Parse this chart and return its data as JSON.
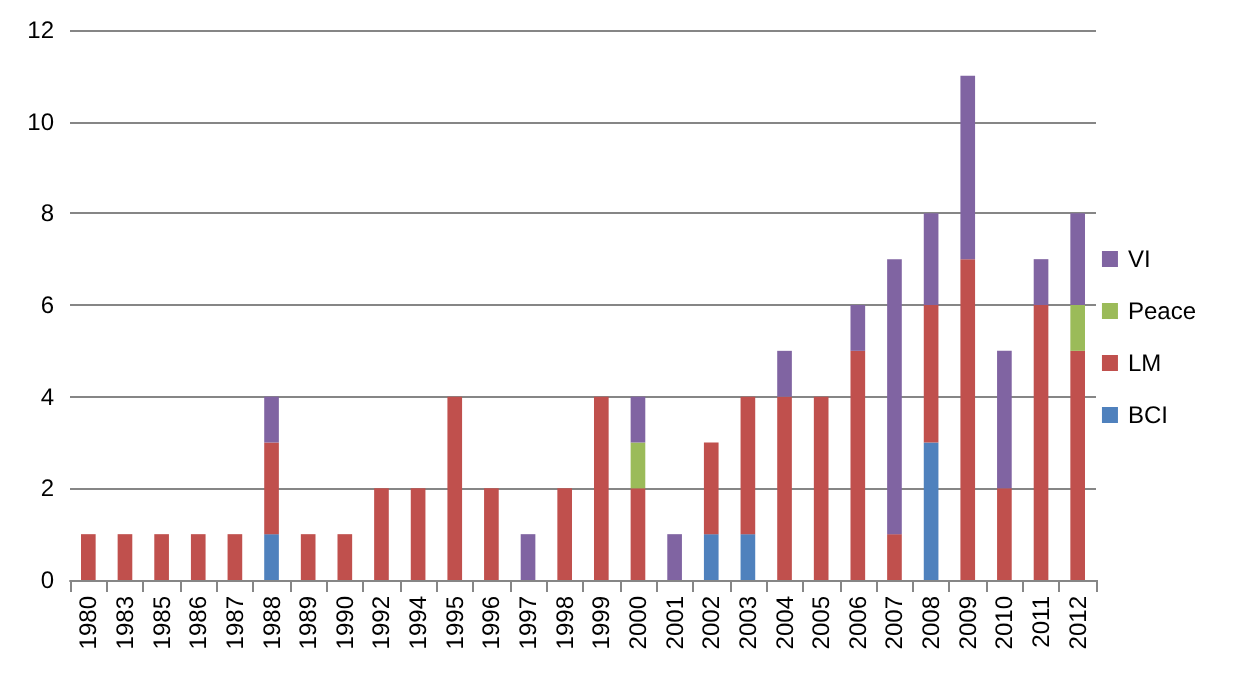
{
  "chart_data": {
    "type": "bar",
    "stacked": true,
    "categories": [
      "1980",
      "1983",
      "1985",
      "1986",
      "1987",
      "1988",
      "1989",
      "1990",
      "1992",
      "1994",
      "1995",
      "1996",
      "1997",
      "1998",
      "1999",
      "2000",
      "2001",
      "2002",
      "2003",
      "2004",
      "2005",
      "2006",
      "2007",
      "2008",
      "2009",
      "2010",
      "2011",
      "2012"
    ],
    "series": [
      {
        "name": "BCI",
        "color": "#4f81bd",
        "values": [
          0,
          0,
          0,
          0,
          0,
          1,
          0,
          0,
          0,
          0,
          0,
          0,
          0,
          0,
          0,
          0,
          0,
          1,
          1,
          0,
          0,
          0,
          0,
          3,
          0,
          0,
          0,
          0
        ]
      },
      {
        "name": "LM",
        "color": "#c0504d",
        "values": [
          1,
          1,
          1,
          1,
          1,
          2,
          1,
          1,
          2,
          2,
          4,
          2,
          0,
          2,
          4,
          2,
          0,
          2,
          3,
          4,
          4,
          5,
          1,
          3,
          7,
          2,
          6,
          5
        ]
      },
      {
        "name": "Peace",
        "color": "#9bbb59",
        "values": [
          0,
          0,
          0,
          0,
          0,
          0,
          0,
          0,
          0,
          0,
          0,
          0,
          0,
          0,
          0,
          1,
          0,
          0,
          0,
          0,
          0,
          0,
          0,
          0,
          0,
          0,
          0,
          1
        ]
      },
      {
        "name": "VI",
        "color": "#8064a2",
        "values": [
          0,
          0,
          0,
          0,
          0,
          1,
          0,
          0,
          0,
          0,
          0,
          0,
          1,
          0,
          0,
          1,
          1,
          0,
          0,
          1,
          0,
          1,
          6,
          2,
          4,
          3,
          1,
          2
        ]
      }
    ],
    "ylim": [
      0,
      12
    ],
    "yticks": [
      0,
      2,
      4,
      6,
      8,
      10,
      12
    ],
    "grid": "y",
    "legend": "right"
  }
}
